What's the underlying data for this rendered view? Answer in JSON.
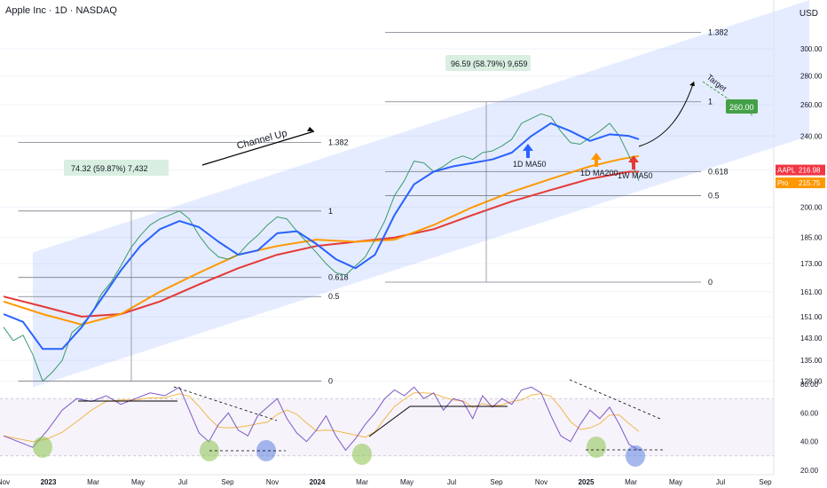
{
  "header": {
    "title": "Apple Inc · 1D · NASDAQ",
    "currency": "USD"
  },
  "colors": {
    "channel": "#2962ff",
    "ma50": "#2962ff",
    "ma200": "#ff9800",
    "ma50w": "#e53935",
    "price": "#3a9a6a",
    "rsi": "#7e57c2",
    "rsi_ma": "#f2b84b",
    "green_circle": "#8bc34a",
    "blue_circle": "#5b7fe0",
    "target": "#43a047"
  },
  "chart_data": {
    "type": "line",
    "ylim": [
      125,
      325
    ],
    "log_scale": true,
    "x_ticks": [
      "Nov",
      "2023",
      "Mar",
      "May",
      "Jul",
      "Sep",
      "Nov",
      "2024",
      "Mar",
      "May",
      "Jul",
      "Sep",
      "Nov",
      "2025",
      "Mar",
      "May",
      "Jul",
      "Sep"
    ],
    "y_ticks": [
      128,
      135,
      143,
      151,
      161,
      173,
      185,
      200,
      220,
      240,
      260,
      280,
      300
    ],
    "price_tags": [
      {
        "label": "AAPL",
        "value": "216.98",
        "color": "#f23645"
      },
      {
        "label": "Pro",
        "value": "215.75",
        "color": "#ff9800"
      }
    ],
    "series": [
      {
        "name": "AAPL",
        "values": [
          [
            0,
            147
          ],
          [
            2,
            142
          ],
          [
            4,
            144
          ],
          [
            6,
            137
          ],
          [
            8,
            128
          ],
          [
            10,
            131
          ],
          [
            12,
            135
          ],
          [
            14,
            145
          ],
          [
            16,
            148
          ],
          [
            18,
            152
          ],
          [
            20,
            160
          ],
          [
            22,
            165
          ],
          [
            24,
            172
          ],
          [
            26,
            180
          ],
          [
            28,
            186
          ],
          [
            30,
            191
          ],
          [
            32,
            194
          ],
          [
            34,
            196
          ],
          [
            36,
            198
          ],
          [
            38,
            194
          ],
          [
            40,
            186
          ],
          [
            42,
            180
          ],
          [
            44,
            176
          ],
          [
            46,
            175
          ],
          [
            48,
            177
          ],
          [
            50,
            182
          ],
          [
            52,
            186
          ],
          [
            54,
            191
          ],
          [
            56,
            195
          ],
          [
            58,
            194
          ],
          [
            60,
            188
          ],
          [
            62,
            183
          ],
          [
            64,
            178
          ],
          [
            66,
            173
          ],
          [
            68,
            169
          ],
          [
            70,
            168
          ],
          [
            72,
            172
          ],
          [
            74,
            176
          ],
          [
            76,
            184
          ],
          [
            78,
            193
          ],
          [
            80,
            206
          ],
          [
            82,
            214
          ],
          [
            84,
            225
          ],
          [
            86,
            224
          ],
          [
            88,
            219
          ],
          [
            90,
            222
          ],
          [
            92,
            226
          ],
          [
            94,
            228
          ],
          [
            96,
            226
          ],
          [
            98,
            230
          ],
          [
            100,
            231
          ],
          [
            102,
            234
          ],
          [
            104,
            238
          ],
          [
            106,
            248
          ],
          [
            108,
            251
          ],
          [
            110,
            254
          ],
          [
            112,
            252
          ],
          [
            114,
            243
          ],
          [
            116,
            236
          ],
          [
            118,
            235
          ],
          [
            120,
            239
          ],
          [
            122,
            243
          ],
          [
            124,
            248
          ],
          [
            126,
            240
          ],
          [
            128,
            228
          ],
          [
            130,
            214
          ]
        ]
      },
      {
        "name": "1D MA50",
        "values": [
          [
            0,
            152
          ],
          [
            4,
            149
          ],
          [
            8,
            139
          ],
          [
            12,
            139
          ],
          [
            16,
            147
          ],
          [
            20,
            158
          ],
          [
            24,
            170
          ],
          [
            28,
            181
          ],
          [
            32,
            189
          ],
          [
            36,
            193
          ],
          [
            40,
            190
          ],
          [
            44,
            183
          ],
          [
            48,
            177
          ],
          [
            52,
            179
          ],
          [
            56,
            187
          ],
          [
            60,
            188
          ],
          [
            64,
            182
          ],
          [
            68,
            175
          ],
          [
            72,
            171
          ],
          [
            76,
            177
          ],
          [
            80,
            196
          ],
          [
            84,
            212
          ],
          [
            88,
            219
          ],
          [
            92,
            222
          ],
          [
            96,
            224
          ],
          [
            100,
            226
          ],
          [
            104,
            230
          ],
          [
            108,
            240
          ],
          [
            112,
            248
          ],
          [
            116,
            243
          ],
          [
            120,
            237
          ],
          [
            124,
            241
          ],
          [
            128,
            240
          ],
          [
            130,
            238
          ]
        ]
      },
      {
        "name": "1D MA200",
        "values": [
          [
            0,
            157
          ],
          [
            8,
            152
          ],
          [
            16,
            148
          ],
          [
            24,
            152
          ],
          [
            32,
            161
          ],
          [
            40,
            169
          ],
          [
            48,
            177
          ],
          [
            56,
            181
          ],
          [
            64,
            184
          ],
          [
            72,
            183
          ],
          [
            80,
            184
          ],
          [
            88,
            191
          ],
          [
            96,
            200
          ],
          [
            104,
            208
          ],
          [
            112,
            215
          ],
          [
            120,
            222
          ],
          [
            126,
            226
          ],
          [
            130,
            228
          ]
        ]
      },
      {
        "name": "1W MA50",
        "values": [
          [
            0,
            159
          ],
          [
            8,
            155
          ],
          [
            16,
            151
          ],
          [
            24,
            152
          ],
          [
            32,
            157
          ],
          [
            40,
            164
          ],
          [
            48,
            171
          ],
          [
            56,
            177
          ],
          [
            64,
            181
          ],
          [
            72,
            183
          ],
          [
            80,
            185
          ],
          [
            88,
            189
          ],
          [
            96,
            196
          ],
          [
            104,
            203
          ],
          [
            112,
            209
          ],
          [
            120,
            215
          ],
          [
            128,
            219
          ],
          [
            130,
            219
          ]
        ]
      }
    ],
    "annotations": {
      "channel_label": "Channel Up",
      "box1": "74.32 (59.87%) 7,432",
      "box2": "96.59 (58.79%) 9,659",
      "target_label": "Target",
      "target_value": "260.00",
      "ma_labels": [
        "1D MA50",
        "1D MA200",
        "1W MA50"
      ],
      "fib1": {
        "levels": [
          "1.382",
          "1",
          "0.618",
          "0.5",
          "0"
        ]
      },
      "fib2": {
        "levels": [
          "1.382",
          "1",
          "0.618",
          "0.5",
          "0"
        ]
      }
    },
    "rsi": {
      "ylim": [
        20,
        85
      ],
      "y_ticks": [
        20.0,
        40.0,
        60.0,
        80.0
      ],
      "values": [
        [
          0,
          44
        ],
        [
          3,
          40
        ],
        [
          6,
          36
        ],
        [
          9,
          48
        ],
        [
          12,
          62
        ],
        [
          15,
          70
        ],
        [
          18,
          68
        ],
        [
          21,
          72
        ],
        [
          24,
          66
        ],
        [
          27,
          70
        ],
        [
          30,
          74
        ],
        [
          33,
          72
        ],
        [
          36,
          78
        ],
        [
          38,
          62
        ],
        [
          40,
          46
        ],
        [
          42,
          40
        ],
        [
          44,
          52
        ],
        [
          46,
          60
        ],
        [
          48,
          48
        ],
        [
          50,
          44
        ],
        [
          52,
          58
        ],
        [
          54,
          64
        ],
        [
          56,
          70
        ],
        [
          58,
          56
        ],
        [
          60,
          46
        ],
        [
          62,
          40
        ],
        [
          64,
          48
        ],
        [
          66,
          58
        ],
        [
          68,
          44
        ],
        [
          70,
          34
        ],
        [
          72,
          42
        ],
        [
          74,
          52
        ],
        [
          76,
          60
        ],
        [
          78,
          70
        ],
        [
          80,
          76
        ],
        [
          82,
          72
        ],
        [
          84,
          78
        ],
        [
          86,
          70
        ],
        [
          88,
          74
        ],
        [
          90,
          62
        ],
        [
          92,
          70
        ],
        [
          94,
          68
        ],
        [
          96,
          56
        ],
        [
          98,
          72
        ],
        [
          100,
          64
        ],
        [
          102,
          70
        ],
        [
          104,
          66
        ],
        [
          106,
          76
        ],
        [
          108,
          78
        ],
        [
          110,
          74
        ],
        [
          112,
          58
        ],
        [
          114,
          44
        ],
        [
          116,
          40
        ],
        [
          118,
          52
        ],
        [
          120,
          62
        ],
        [
          122,
          56
        ],
        [
          124,
          64
        ],
        [
          126,
          52
        ],
        [
          128,
          38
        ],
        [
          130,
          34
        ]
      ]
    }
  }
}
